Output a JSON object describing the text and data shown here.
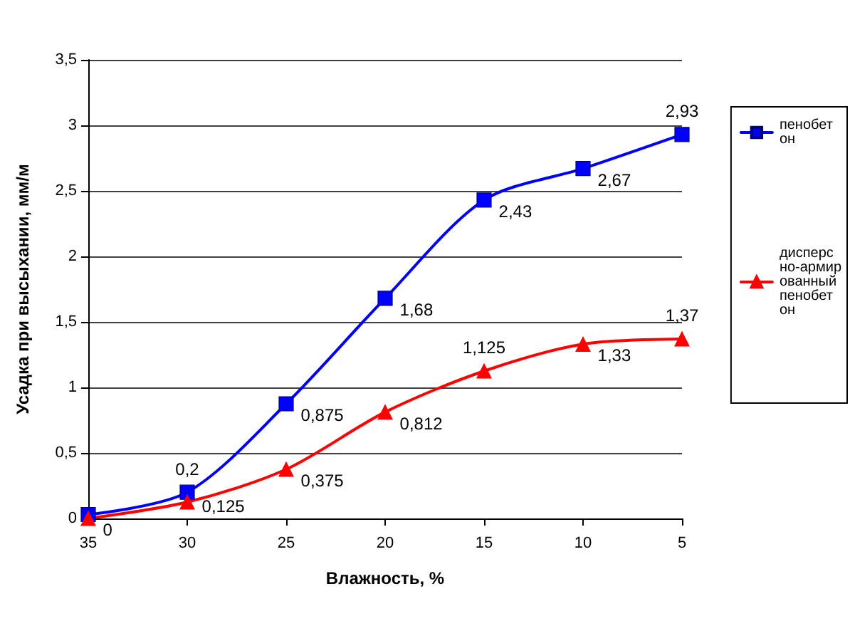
{
  "chart_data": {
    "type": "line",
    "xlabel": "Влажность, %",
    "ylabel": "Усадка при высыхании, мм/м",
    "x": [
      35,
      30,
      25,
      20,
      15,
      10,
      5
    ],
    "series": [
      {
        "name": "пенобетон",
        "color": "#0000ff",
        "marker": "square",
        "values": [
          0.03,
          0.2,
          0.875,
          1.68,
          2.43,
          2.67,
          2.93
        ],
        "value_labels": [
          null,
          "0,2",
          "0,875",
          "1,68",
          "2,43",
          "2,67",
          "2,93"
        ]
      },
      {
        "name": "дисперсно-армированный пенобетон",
        "color": "#ff0000",
        "marker": "triangle",
        "values": [
          0,
          0.125,
          0.375,
          0.812,
          1.125,
          1.33,
          1.37
        ],
        "value_labels": [
          "0",
          "0,125",
          "0,375",
          "0,812",
          "1,125",
          "1,33",
          "1,37"
        ]
      }
    ],
    "xlim": [
      35,
      5
    ],
    "xticks": [
      35,
      30,
      25,
      20,
      15,
      10,
      5
    ],
    "ylim": [
      0,
      3.5
    ],
    "yticks": [
      0,
      {
        "value": 0.5,
        "label": "0,5"
      },
      1,
      {
        "value": 1.5,
        "label": "1,5"
      },
      2,
      {
        "value": 2.5,
        "label": "2,5"
      },
      3,
      {
        "value": 3.5,
        "label": "3,5"
      }
    ],
    "grid": "y",
    "legend": "right",
    "line_style": "solid"
  }
}
